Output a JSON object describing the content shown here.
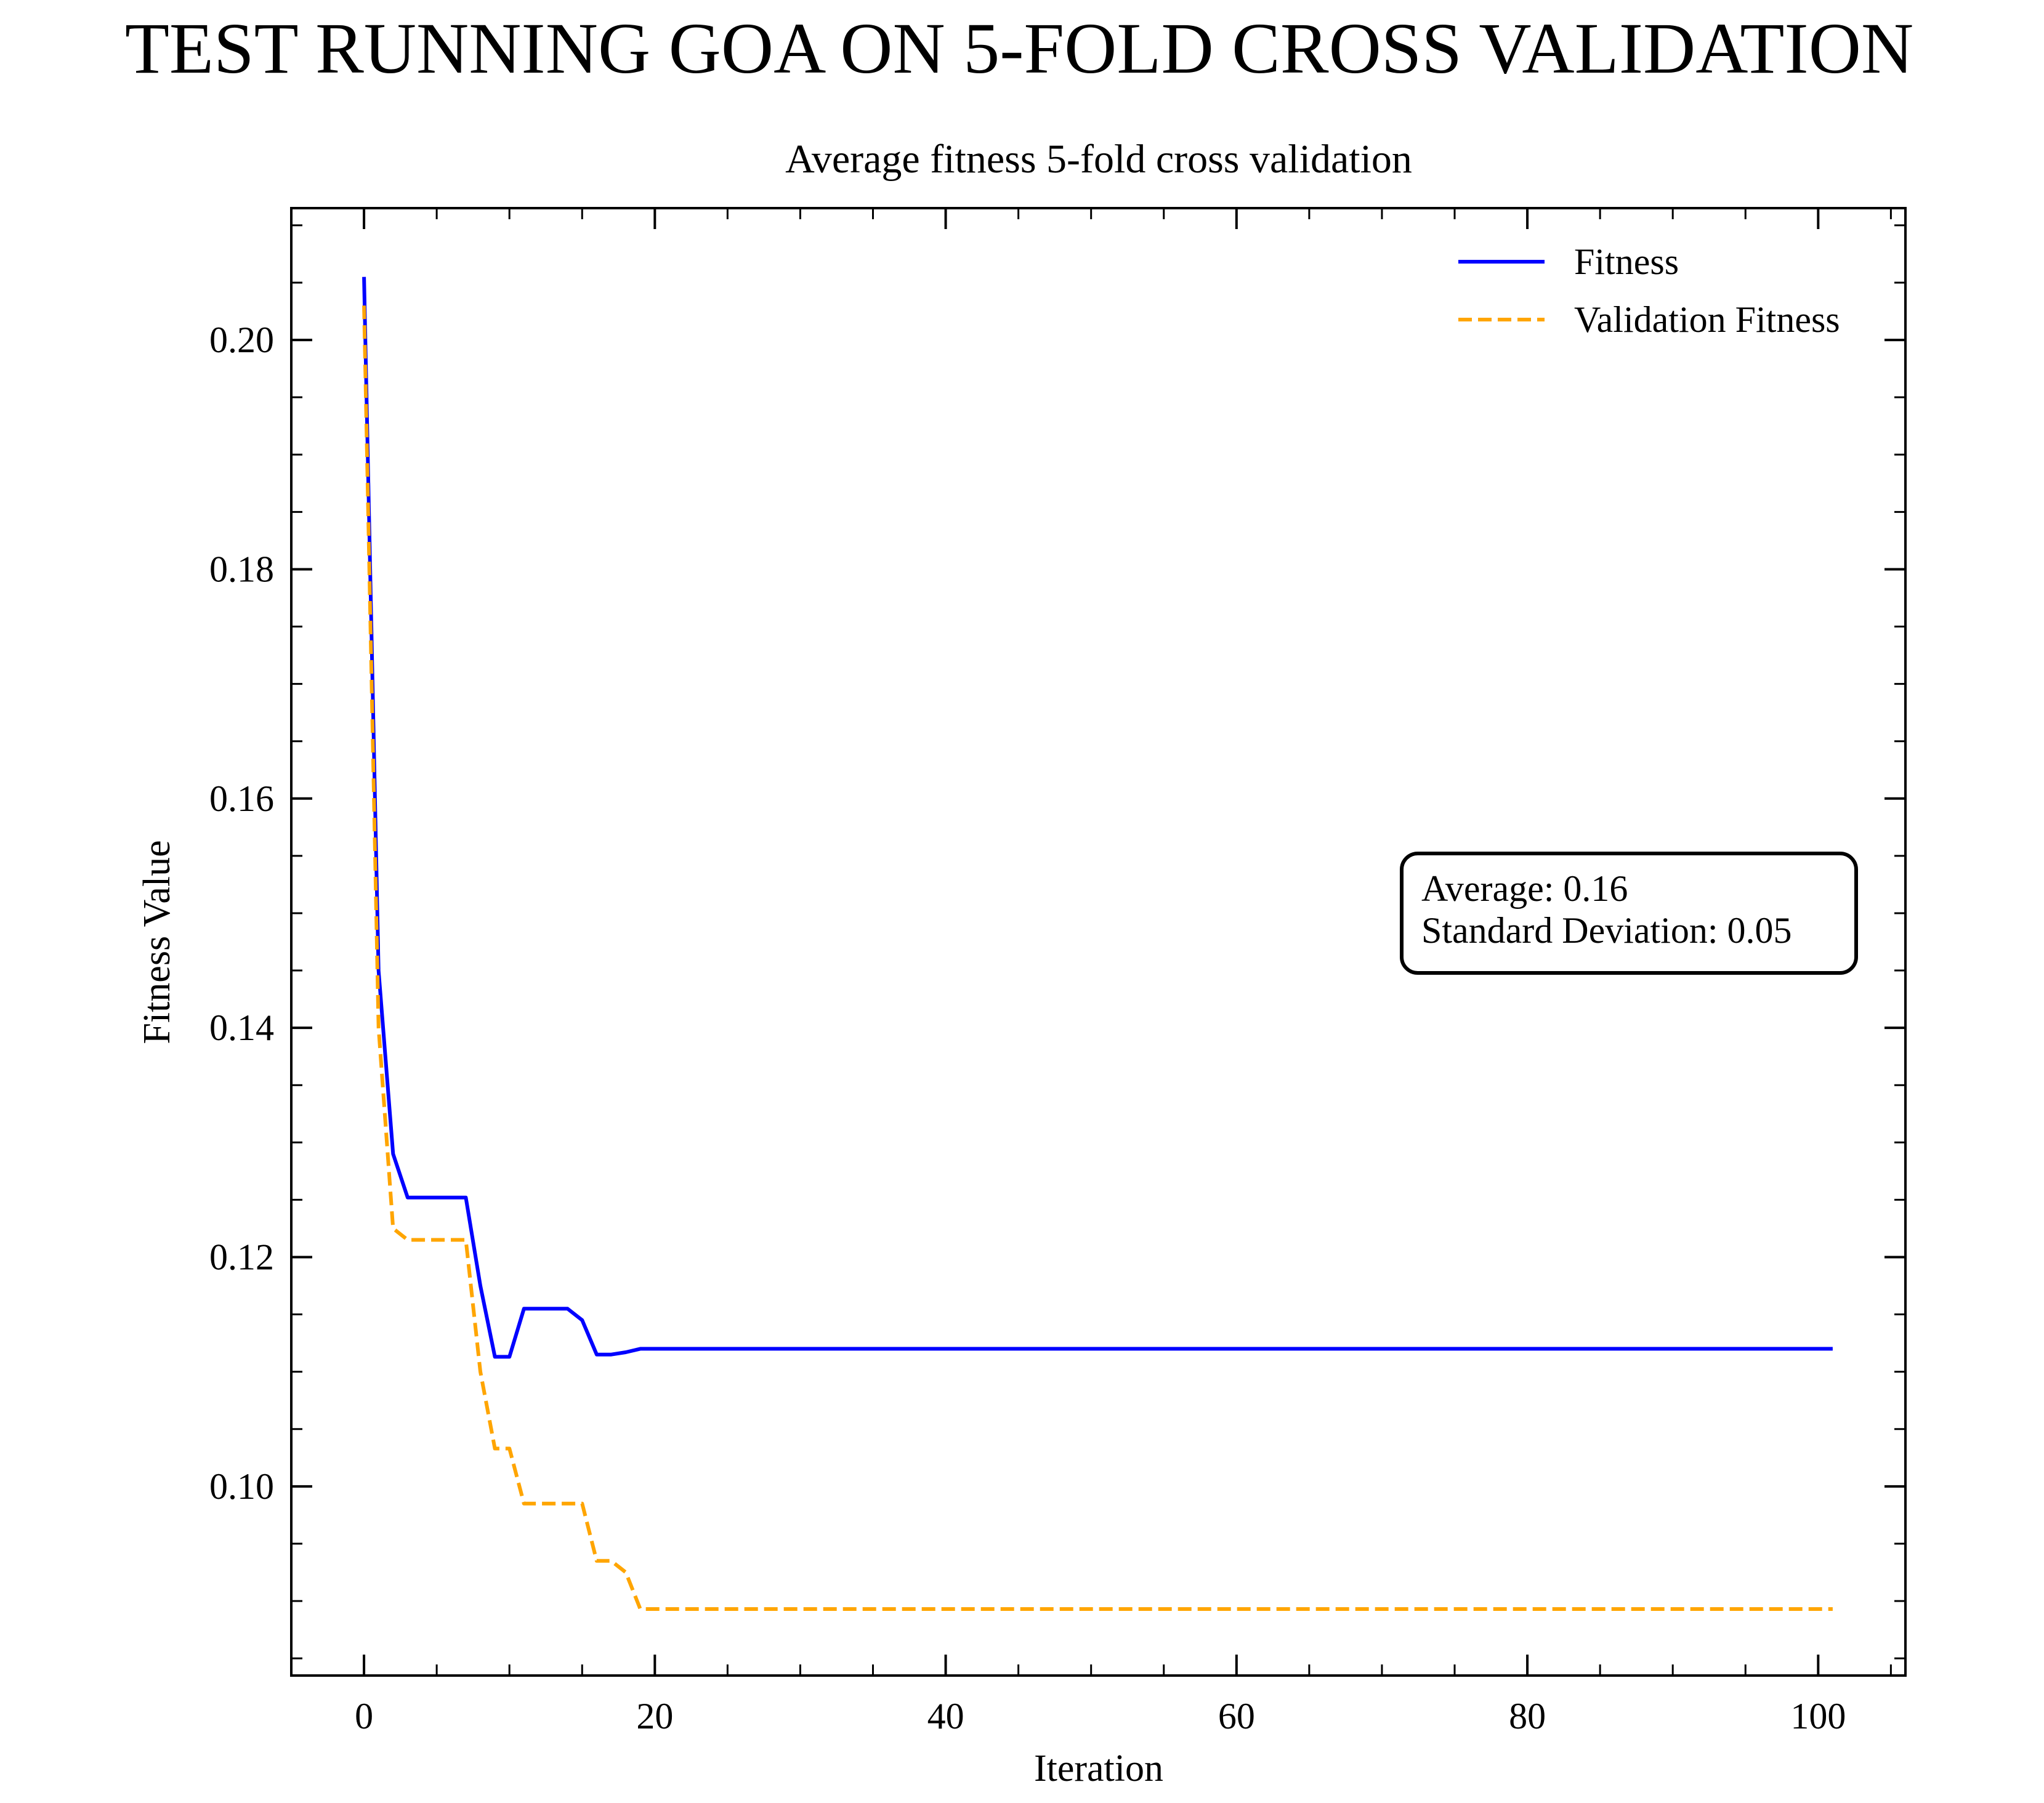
{
  "suptitle": "TEST RUNNING GOA ON 5-FOLD CROSS VALIDATION",
  "chart_data": {
    "type": "line",
    "title": "Average fitness 5-fold cross validation",
    "xlabel": "Iteration",
    "ylabel": "Fitness Value",
    "xlim": [
      -5,
      106
    ],
    "ylim": [
      0.0835,
      0.2115
    ],
    "xticks": [
      0,
      20,
      40,
      60,
      80,
      100
    ],
    "xtick_labels": [
      "0",
      "20",
      "40",
      "60",
      "80",
      "100"
    ],
    "yticks": [
      0.1,
      0.12,
      0.14,
      0.16,
      0.18,
      0.2
    ],
    "ytick_labels": [
      "0.10",
      "0.12",
      "0.14",
      "0.16",
      "0.18",
      "0.20"
    ],
    "grid": false,
    "legend_position": "top-right",
    "series": [
      {
        "name": "Fitness",
        "color": "#0000ff",
        "style": "solid",
        "x": [
          0,
          1,
          2,
          3,
          4,
          5,
          6,
          7,
          8,
          9,
          10,
          11,
          12,
          13,
          14,
          15,
          16,
          17,
          18,
          19,
          20,
          101
        ],
        "y": [
          0.2055,
          0.145,
          0.129,
          0.1252,
          0.1252,
          0.1252,
          0.1252,
          0.1252,
          0.1175,
          0.1113,
          0.1113,
          0.1155,
          0.1155,
          0.1155,
          0.1155,
          0.1145,
          0.1115,
          0.1115,
          0.1117,
          0.112,
          0.112,
          0.112
        ]
      },
      {
        "name": "Validation Fitness",
        "color": "#ffa500",
        "style": "dashed",
        "x": [
          0,
          1,
          2,
          3,
          4,
          5,
          6,
          7,
          8,
          9,
          10,
          11,
          12,
          13,
          14,
          15,
          16,
          17,
          18,
          19,
          20,
          101
        ],
        "y": [
          0.203,
          0.14,
          0.1225,
          0.1215,
          0.1215,
          0.1215,
          0.1215,
          0.1215,
          0.11,
          0.1033,
          0.1033,
          0.0985,
          0.0985,
          0.0985,
          0.0985,
          0.0985,
          0.0935,
          0.0935,
          0.0925,
          0.0893,
          0.0893,
          0.0893
        ]
      }
    ],
    "annotation": {
      "lines": [
        "Average: 0.16",
        "Standard Deviation: 0.05"
      ],
      "position": "right-middle"
    }
  }
}
